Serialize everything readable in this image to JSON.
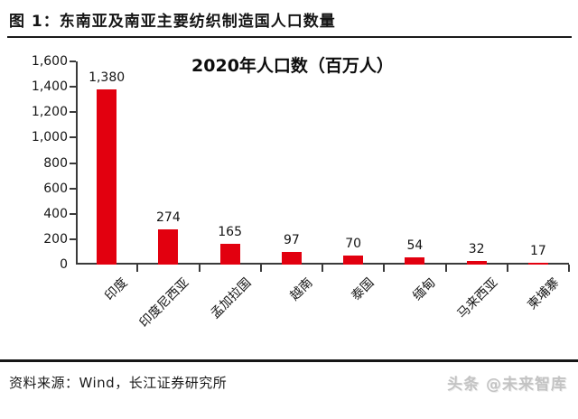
{
  "header": {
    "figure_label": "图 1：东南亚及南亚主要纺织制造国人口数量"
  },
  "chart_data": {
    "type": "bar",
    "title": "2020年人口数（百万人）",
    "categories": [
      "印度",
      "印度尼西亚",
      "孟加拉国",
      "越南",
      "泰国",
      "缅甸",
      "马来西亚",
      "柬埔寨"
    ],
    "values": [
      1380,
      274,
      165,
      97,
      70,
      54,
      32,
      17
    ],
    "value_labels": [
      "1,380",
      "274",
      "165",
      "97",
      "70",
      "54",
      "32",
      "17"
    ],
    "ylim": [
      0,
      1600
    ],
    "y_tick_values": [
      0,
      200,
      400,
      600,
      800,
      1000,
      1200,
      1400,
      1600
    ],
    "y_tick_labels": [
      "0",
      "200",
      "400",
      "600",
      "800",
      "1,000",
      "1,200",
      "1,400",
      "1,600"
    ],
    "bar_color": "#e2000f",
    "axis_color": "#3a3a3a",
    "grid": false,
    "legend": false,
    "x_label_rotation_deg": -45
  },
  "footer": {
    "source": "资料来源：Wind，长江证券研究所",
    "watermark": "头条 @未来智库"
  }
}
